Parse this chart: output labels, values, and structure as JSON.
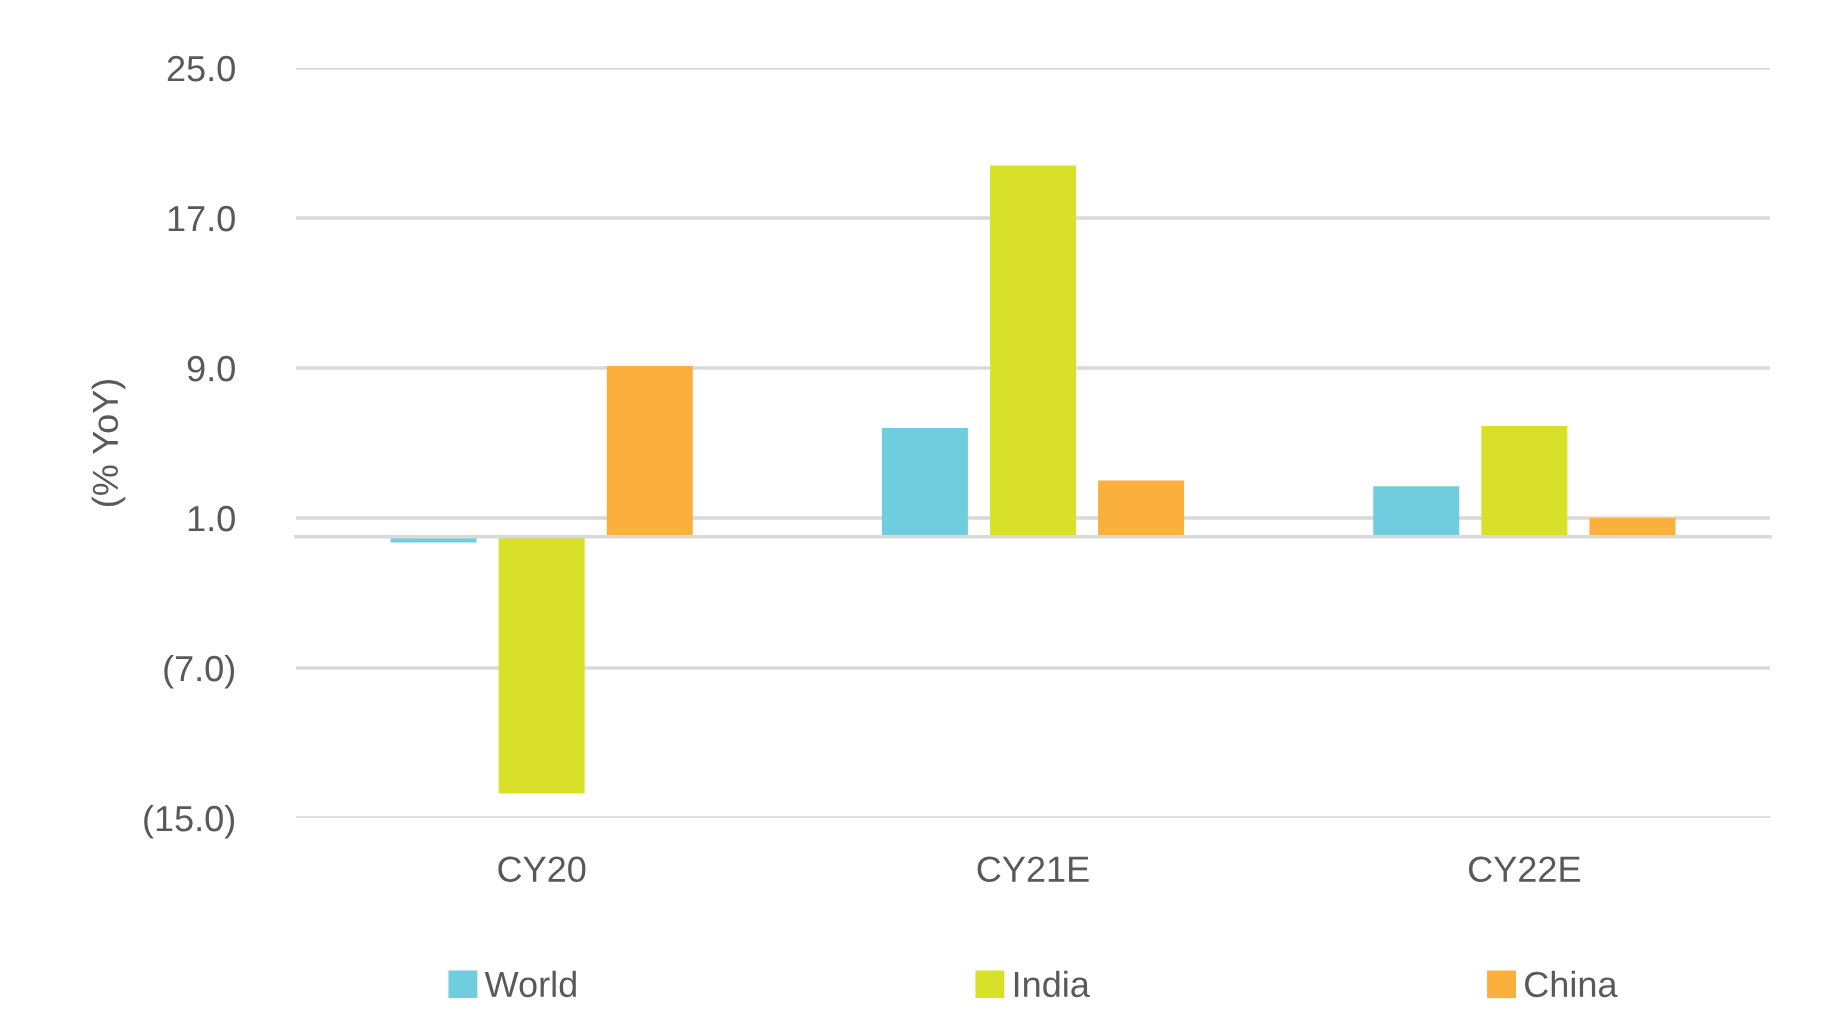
{
  "chart_data": {
    "type": "bar",
    "ylabel": "(% YoY)",
    "categories": [
      "CY20",
      "CY21E",
      "CY22E"
    ],
    "series": [
      {
        "name": "World",
        "color": "#70cddd",
        "values": [
          -0.3,
          5.8,
          2.7
        ]
      },
      {
        "name": "India",
        "color": "#d9e02a",
        "values": [
          -13.7,
          19.8,
          5.9
        ]
      },
      {
        "name": "China",
        "color": "#fbaf3c",
        "values": [
          9.1,
          3.0,
          1.0
        ]
      }
    ],
    "ylim": [
      -15,
      25
    ],
    "yticks": [
      {
        "value": -15,
        "label": "(15.0)"
      },
      {
        "value": -7,
        "label": "(7.0)"
      },
      {
        "value": 1,
        "label": "1.0"
      },
      {
        "value": 9,
        "label": "9.0"
      },
      {
        "value": 17,
        "label": "17.0"
      },
      {
        "value": 25,
        "label": "25.0"
      }
    ],
    "grid": "y",
    "legend": "bottom"
  }
}
